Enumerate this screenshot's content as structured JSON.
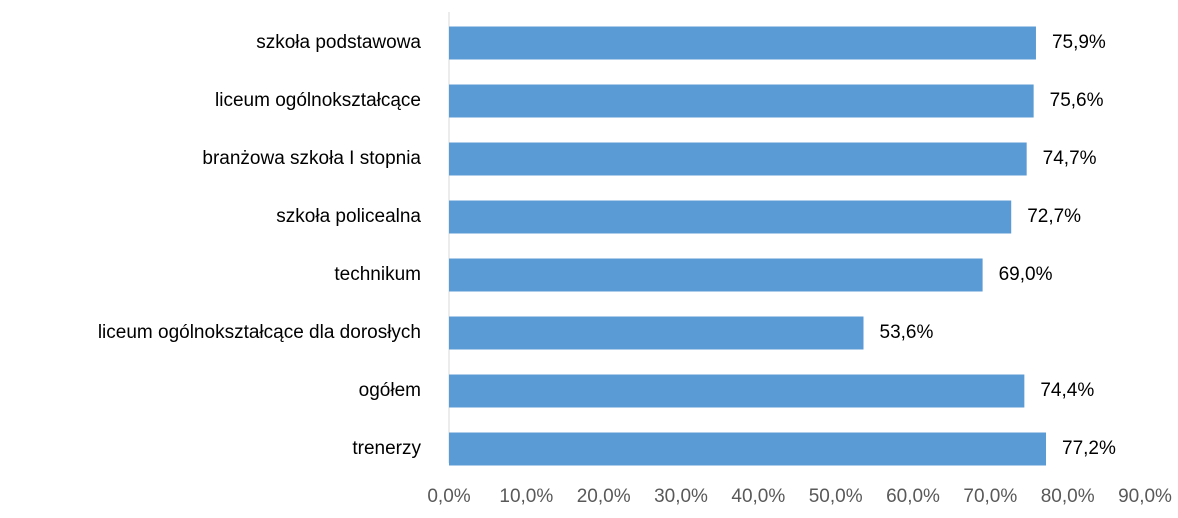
{
  "chart_data": {
    "type": "bar",
    "orientation": "horizontal",
    "categories": [
      "szkoła podstawowa",
      "liceum ogólnokształcące",
      "branżowa szkoła I stopnia",
      "szkoła policealna",
      "technikum",
      "liceum ogólnokształcące dla dorosłych",
      "ogółem",
      "trenerzy"
    ],
    "values": [
      75.9,
      75.6,
      74.7,
      72.7,
      69.0,
      53.6,
      74.4,
      77.2
    ],
    "value_labels": [
      "75,9%",
      "75,6%",
      "74,7%",
      "72,7%",
      "69,0%",
      "53,6%",
      "74,4%",
      "77,2%"
    ],
    "color": "#5b9bd5",
    "xlim": [
      0,
      90
    ],
    "xticks": [
      {
        "value": 0,
        "label": "0,0%"
      },
      {
        "value": 10,
        "label": "10,0%"
      },
      {
        "value": 20,
        "label": "20,0%"
      },
      {
        "value": 30,
        "label": "30,0%"
      },
      {
        "value": 40,
        "label": "40,0%"
      },
      {
        "value": 50,
        "label": "50,0%"
      },
      {
        "value": 60,
        "label": "60,0%"
      },
      {
        "value": 70,
        "label": "70,0%"
      },
      {
        "value": 80,
        "label": "80,0%"
      },
      {
        "value": 90,
        "label": "90,0%"
      }
    ],
    "grid": false
  }
}
